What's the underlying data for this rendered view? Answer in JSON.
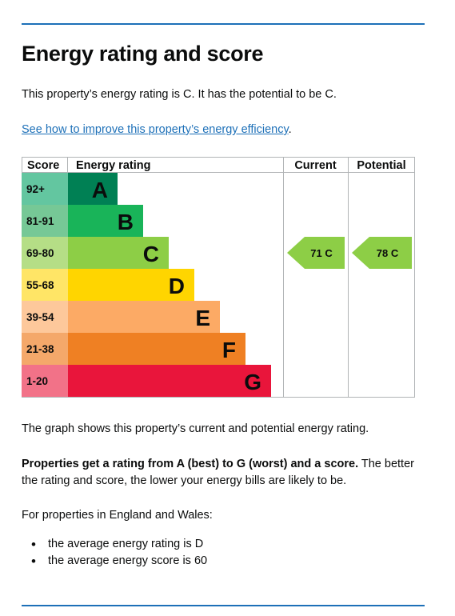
{
  "heading": "Energy rating and score",
  "intro": "This property’s energy rating is C. It has the potential to be C.",
  "improve_link": "See how to improve this property’s energy efficiency",
  "improve_link_suffix": ".",
  "graph_description": "The graph shows this property’s current and potential energy rating.",
  "rating_explanation_bold": "Properties get a rating from A (best) to G (worst) and a score.",
  "rating_explanation_rest": " The better the rating and score, the lower your energy bills are likely to be.",
  "region_intro": "For properties in England and Wales:",
  "averages": [
    "the average energy rating is D",
    "the average energy score is 60"
  ],
  "chart_data": {
    "type": "table",
    "columns": [
      "Score",
      "Energy rating",
      "Current",
      "Potential"
    ],
    "bands": [
      {
        "score": "92+",
        "rating": "A",
        "color": "#008054",
        "score_bg": "#63c6a0"
      },
      {
        "score": "81-91",
        "rating": "B",
        "color": "#19b459",
        "score_bg": "#76c896"
      },
      {
        "score": "69-80",
        "rating": "C",
        "color": "#8dce46",
        "score_bg": "#b5de86"
      },
      {
        "score": "55-68",
        "rating": "D",
        "color": "#ffd500",
        "score_bg": "#ffe566"
      },
      {
        "score": "39-54",
        "rating": "E",
        "color": "#fcaa65",
        "score_bg": "#fdc89b"
      },
      {
        "score": "21-38",
        "rating": "F",
        "color": "#ef8023",
        "score_bg": "#f4a86a"
      },
      {
        "score": "1-20",
        "rating": "G",
        "color": "#e9153b",
        "score_bg": "#f27288"
      }
    ],
    "current": {
      "value": 71,
      "rating": "C",
      "label": "71 C",
      "color": "#8dce46"
    },
    "potential": {
      "value": 78,
      "rating": "C",
      "label": "78 C",
      "color": "#8dce46"
    }
  }
}
